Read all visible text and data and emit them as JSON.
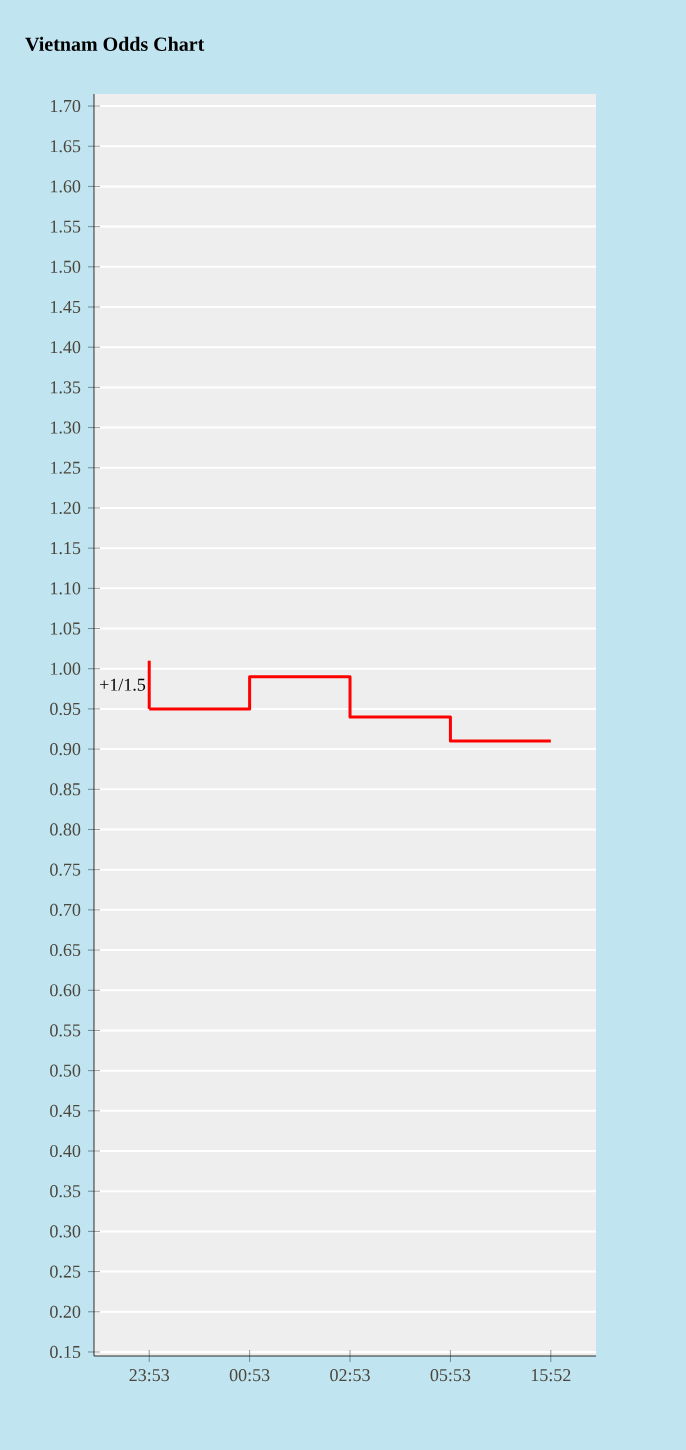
{
  "chart_data": {
    "type": "step",
    "title": "Vietnam Odds Chart",
    "categories": [
      "23:53",
      "00:53",
      "02:53",
      "05:53",
      "15:52"
    ],
    "series": [
      {
        "color": "#ff0000",
        "values": [
          0.95,
          0.99,
          0.94,
          0.91,
          0.91
        ]
      },
      {
        "type": "line",
        "color": "#ff0000",
        "x": [
          "23:53",
          "23:53"
        ],
        "values": [
          1.01,
          0.95
        ]
      }
    ],
    "ylim": [
      0.145,
      1.715
    ],
    "yticks": [
      {
        "value": 0.15,
        "label": "0.15"
      },
      {
        "value": 0.2,
        "label": "0.20"
      },
      {
        "value": 0.25,
        "label": "0.25"
      },
      {
        "value": 0.3,
        "label": "0.30"
      },
      {
        "value": 0.35,
        "label": "0.35"
      },
      {
        "value": 0.4,
        "label": "0.40"
      },
      {
        "value": 0.45,
        "label": "0.45"
      },
      {
        "value": 0.5,
        "label": "0.50"
      },
      {
        "value": 0.55,
        "label": "0.55"
      },
      {
        "value": 0.6,
        "label": "0.60"
      },
      {
        "value": 0.65,
        "label": "0.65"
      },
      {
        "value": 0.7,
        "label": "0.70"
      },
      {
        "value": 0.75,
        "label": "0.75"
      },
      {
        "value": 0.8,
        "label": "0.80"
      },
      {
        "value": 0.85,
        "label": "0.85"
      },
      {
        "value": 0.9,
        "label": "0.90"
      },
      {
        "value": 0.95,
        "label": "0.95"
      },
      {
        "value": 1.0,
        "label": "1.00"
      },
      {
        "value": 1.05,
        "label": "1.05"
      },
      {
        "value": 1.1,
        "label": "1.10"
      },
      {
        "value": 1.15,
        "label": "1.15"
      },
      {
        "value": 1.2,
        "label": "1.20"
      },
      {
        "value": 1.25,
        "label": "1.25"
      },
      {
        "value": 1.3,
        "label": "1.30"
      },
      {
        "value": 1.35,
        "label": "1.35"
      },
      {
        "value": 1.4,
        "label": "1.40"
      },
      {
        "value": 1.45,
        "label": "1.45"
      },
      {
        "value": 1.5,
        "label": "1.50"
      },
      {
        "value": 1.55,
        "label": "1.55"
      },
      {
        "value": 1.6,
        "label": "1.60"
      },
      {
        "value": 1.65,
        "label": "1.65"
      },
      {
        "value": 1.7,
        "label": "1.70"
      }
    ],
    "grid": "y",
    "marker": "none",
    "line_style": "solid",
    "annotations": [
      {
        "text": "+1/1.5",
        "x": "23:53",
        "y": 0.98
      }
    ]
  }
}
